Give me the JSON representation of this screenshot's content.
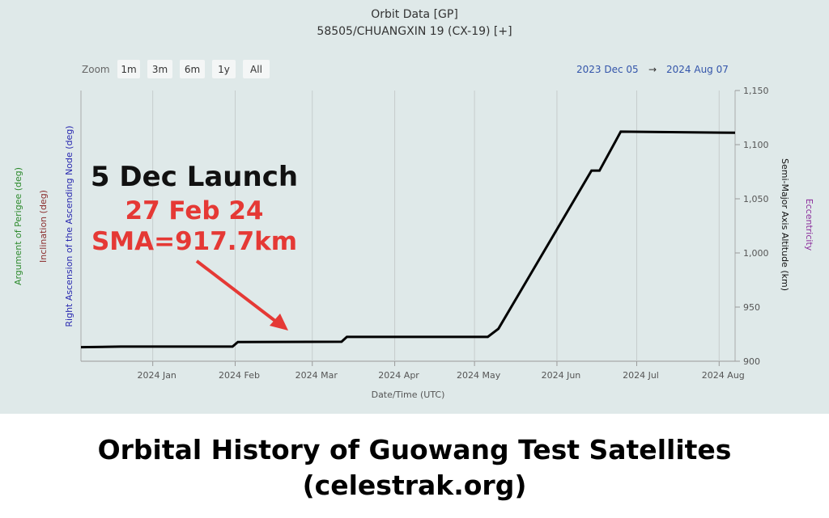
{
  "chart_data": {
    "type": "line",
    "title": "Orbit Data [GP]",
    "subtitle": "58505/CHUANGXIN 19 (CX-19) [+]",
    "zoom_label": "Zoom",
    "zoom_buttons": [
      "1m",
      "3m",
      "6m",
      "1y",
      "All"
    ],
    "range_from": "2023 Dec 05",
    "range_arrow": "→",
    "range_to": "2024 Aug 07",
    "x_label": "Date/Time (UTC)",
    "left_axis_labels": [
      {
        "text": "Argument of Perigee (deg)",
        "color": "#2e8b2e"
      },
      {
        "text": "Inclination (deg)",
        "color": "#8b2e2e"
      },
      {
        "text": "Right Ascension of the Ascending Node (deg)",
        "color": "#2a2ab0"
      }
    ],
    "right_axis_labels": [
      {
        "text": "Semi-Major Axis Altitude (km)",
        "color": "#111111"
      },
      {
        "text": "Eccentricity",
        "color": "#8a2a9a"
      }
    ],
    "annotations": [
      "5 Dec Launch",
      "27 Feb 24",
      "SMA=917.7km"
    ],
    "x": [
      "2023-12-05",
      "2023-12-20",
      "2024-01-31",
      "2024-02-02",
      "2024-03-12",
      "2024-03-14",
      "2024-05-06",
      "2024-05-10",
      "2024-06-14",
      "2024-06-17",
      "2024-06-25",
      "2024-08-07"
    ],
    "values": [
      913,
      913.5,
      913.5,
      917.7,
      918,
      922.5,
      922.5,
      930,
      1076,
      1076,
      1112,
      1111
    ],
    "color": "#000000",
    "xlim": [
      "2023-12-05",
      "2024-08-07"
    ],
    "xticks": [
      {
        "value": "2024-01-01",
        "label": "2024 Jan"
      },
      {
        "value": "2024-02-01",
        "label": "2024 Feb"
      },
      {
        "value": "2024-03-01",
        "label": "2024 Mar"
      },
      {
        "value": "2024-04-01",
        "label": "2024 Apr"
      },
      {
        "value": "2024-05-01",
        "label": "2024 May"
      },
      {
        "value": "2024-06-01",
        "label": "2024 Jun"
      },
      {
        "value": "2024-07-01",
        "label": "2024 Jul"
      },
      {
        "value": "2024-08-01",
        "label": "2024 Aug"
      }
    ],
    "ylim": [
      900,
      1150
    ],
    "yticks": [
      900,
      950,
      {
        "value": 1000,
        "label": "1,000"
      },
      {
        "value": 1050,
        "label": "1,050"
      },
      {
        "value": 1100,
        "label": "1,100"
      },
      {
        "value": 1150,
        "label": "1,150"
      }
    ],
    "xgrid": true
  },
  "caption": [
    "Orbital History of Guowang Test Satellites",
    "(celestrak.org)"
  ]
}
